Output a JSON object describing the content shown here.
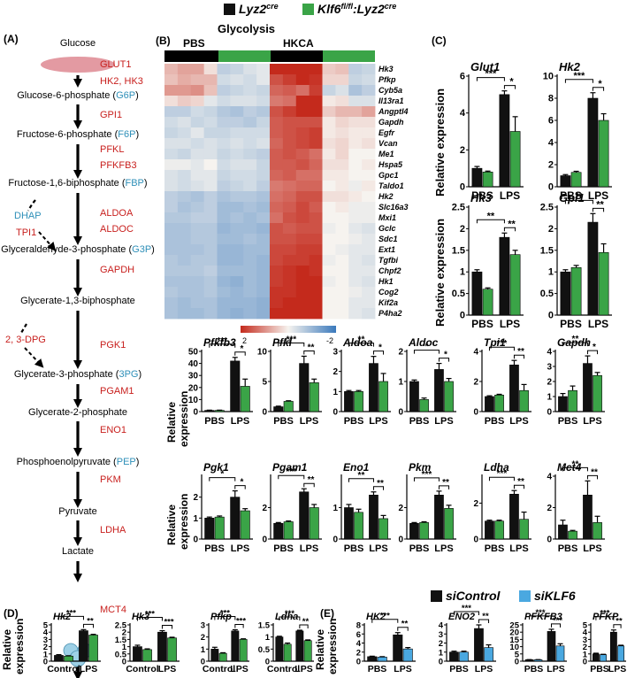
{
  "legend_top": {
    "items": [
      {
        "base": "Lyz2",
        "sup": "cre",
        "color": "#111111"
      },
      {
        "base": "Klf6",
        "sup": "fl/fl",
        "base2": ":Lyz2",
        "sup2": "cre",
        "color": "#3aa447"
      }
    ]
  },
  "legend_bottom": {
    "items": [
      {
        "label": "siControl",
        "color": "#111111"
      },
      {
        "label": "siKLF6",
        "color": "#4aa8e0"
      }
    ]
  },
  "colors": {
    "black": "#111111",
    "green": "#3aa447",
    "blue": "#4aa8e0",
    "enzyme": "#c8201e",
    "abbr": "#2e8fb8"
  },
  "panel_a": {
    "label": "(A)",
    "metabolites": [
      {
        "name": "Glucose",
        "abbr": ""
      },
      {
        "name": "Glucose-6-phosphate",
        "abbr": "G6P"
      },
      {
        "name": "Fructose-6-phosphate",
        "abbr": "F6P"
      },
      {
        "name": "Fructose-1,6-biphosphate",
        "abbr": "FBP"
      },
      {
        "name": "Glyceraldehyde-3-phosphate",
        "abbr": "G3P"
      },
      {
        "name": "Glycerate-1,3-biphosphate",
        "abbr": ""
      },
      {
        "name": "Glycerate-3-phosphate",
        "abbr": "3PG"
      },
      {
        "name": "Glycerate-2-phosphate",
        "abbr": ""
      },
      {
        "name": "Phosphoenolpyruvate",
        "abbr": "PEP"
      },
      {
        "name": "Pyruvate",
        "abbr": ""
      },
      {
        "name": "Lactate",
        "abbr": ""
      }
    ],
    "enzymes": [
      "GLUT1",
      "HK2, HK3",
      "GPI1",
      "PFKL",
      "PFKFB3",
      "ALDOA",
      "ALDOC",
      "GAPDH",
      "PGK1",
      "PGAM1",
      "ENO1",
      "PKM",
      "LDHA",
      "MCT4"
    ],
    "side": [
      {
        "label": "DHAP",
        "color": "blue"
      },
      {
        "label": "TPI1",
        "color": "red"
      },
      {
        "label": "2, 3-DPG",
        "color": "red"
      }
    ]
  },
  "panel_b": {
    "label": "(B)",
    "title": "Glycolysis",
    "groups": [
      "PBS",
      "HKCA"
    ],
    "genes": [
      "Hk3",
      "Pfkp",
      "Cyb5a",
      "Il13ra1",
      "Angptl4",
      "Gapdh",
      "Egfr",
      "Vcan",
      "Me1",
      "Hspa5",
      "Gpc1",
      "Taldo1",
      "Hk2",
      "Slc16a3",
      "Mxi1",
      "Gclc",
      "Sdc1",
      "Ext1",
      "Tgfbi",
      "Chpf2",
      "Hk1",
      "Cog2",
      "Kif2a",
      "P4ha2"
    ],
    "scale_ticks": [
      "2",
      "0",
      "-2"
    ]
  },
  "panel_c": {
    "label": "(C)"
  },
  "panel_d": {
    "label": "(D)"
  },
  "panel_e": {
    "label": "(E)"
  },
  "y_title": "Relative expression",
  "y_title_split": [
    "Relative",
    "expression"
  ],
  "sig_symbols": [
    "***",
    "**",
    "*"
  ],
  "charts": {
    "Glut1": {
      "type": "bar",
      "gene": "Glut1",
      "categories": [
        "PBS",
        "LPS"
      ],
      "series": [
        {
          "name": "Lyz2cre",
          "values": [
            1.0,
            5.0
          ]
        },
        {
          "name": "Klf6fl/fl:Lyz2cre",
          "values": [
            0.8,
            3.0
          ]
        }
      ],
      "errors": [
        [
          0.1,
          0.2
        ],
        [
          0.05,
          0.8
        ]
      ],
      "ylim": [
        0,
        6
      ],
      "yticks": [
        "0",
        "2",
        "4",
        "6"
      ],
      "sig": [
        "***",
        "*"
      ]
    },
    "Hk2_c": {
      "type": "bar",
      "gene": "Hk2",
      "categories": [
        "PBS",
        "LPS"
      ],
      "series": [
        {
          "name": "Lyz2cre",
          "values": [
            1.0,
            8.0
          ]
        },
        {
          "name": "Klf6fl/fl:Lyz2cre",
          "values": [
            1.3,
            6.0
          ]
        }
      ],
      "errors": [
        [
          0.1,
          0.5
        ],
        [
          0.1,
          0.6
        ]
      ],
      "ylim": [
        0,
        10
      ],
      "yticks": [
        "0",
        "2",
        "4",
        "6",
        "8",
        "10"
      ],
      "sig": [
        "***",
        "*"
      ]
    },
    "Hk3_c": {
      "type": "bar",
      "gene": "Hk3",
      "categories": [
        "PBS",
        "LPS"
      ],
      "series": [
        {
          "name": "Lyz2cre",
          "values": [
            1.0,
            1.8
          ]
        },
        {
          "name": "Klf6fl/fl:Lyz2cre",
          "values": [
            0.6,
            1.4
          ]
        }
      ],
      "errors": [
        [
          0.05,
          0.1
        ],
        [
          0.03,
          0.1
        ]
      ],
      "ylim": [
        0,
        2.5
      ],
      "yticks": [
        "0",
        "0.5",
        "1",
        "1.5",
        "2",
        "2.5"
      ],
      "sig": [
        "**",
        "**"
      ]
    },
    "Gpi1": {
      "type": "bar",
      "gene": "Gpi1",
      "categories": [
        "PBS",
        "LPS"
      ],
      "series": [
        {
          "name": "Lyz2cre",
          "values": [
            1.0,
            2.15
          ]
        },
        {
          "name": "Klf6fl/fl:Lyz2cre",
          "values": [
            1.1,
            1.45
          ]
        }
      ],
      "errors": [
        [
          0.05,
          0.2
        ],
        [
          0.05,
          0.2
        ]
      ],
      "ylim": [
        0,
        2.5
      ],
      "yticks": [
        "0",
        "0.5",
        "1",
        "1.5",
        "2",
        "2.5"
      ],
      "sig": [
        "**",
        "**"
      ]
    },
    "Pfkfb3": {
      "type": "bar",
      "gene": "Pfkfb3",
      "categories": [
        "PBS",
        "LPS"
      ],
      "series": [
        {
          "name": "Lyz2cre",
          "values": [
            1.0,
            42
          ]
        },
        {
          "name": "Klf6fl/fl:Lyz2cre",
          "values": [
            1.0,
            21
          ]
        }
      ],
      "errors": [
        [
          0.2,
          3
        ],
        [
          0.2,
          6
        ]
      ],
      "ylim": [
        0,
        50
      ],
      "yticks": [
        "0",
        "10",
        "20",
        "30",
        "40",
        "50"
      ],
      "sig": [
        "***",
        "*"
      ]
    },
    "Pfkl": {
      "type": "bar",
      "gene": "Pfkl",
      "categories": [
        "PBS",
        "LPS"
      ],
      "series": [
        {
          "name": "Lyz2cre",
          "values": [
            0.8,
            8.0
          ]
        },
        {
          "name": "Klf6fl/fl:Lyz2cre",
          "values": [
            1.7,
            4.8
          ]
        }
      ],
      "errors": [
        [
          0.1,
          1.2
        ],
        [
          0.1,
          0.6
        ]
      ],
      "ylim": [
        0,
        10
      ],
      "yticks": [
        "0",
        "5",
        "10"
      ],
      "sig": [
        "***",
        "**"
      ]
    },
    "Aldoa": {
      "type": "bar",
      "gene": "Aldoa",
      "categories": [
        "PBS",
        "LPS"
      ],
      "series": [
        {
          "name": "Lyz2cre",
          "values": [
            1.0,
            2.4
          ]
        },
        {
          "name": "Klf6fl/fl:Lyz2cre",
          "values": [
            1.0,
            1.5
          ]
        }
      ],
      "errors": [
        [
          0.05,
          0.35
        ],
        [
          0.05,
          0.4
        ]
      ],
      "ylim": [
        0,
        3
      ],
      "yticks": [
        "0",
        "1",
        "2",
        "3"
      ],
      "sig": [
        "**",
        "*"
      ]
    },
    "Aldoc": {
      "type": "bar",
      "gene": "Aldoc",
      "categories": [
        "PBS",
        "LPS"
      ],
      "series": [
        {
          "name": "Lyz2cre",
          "values": [
            1.0,
            1.4
          ]
        },
        {
          "name": "Klf6fl/fl:Lyz2cre",
          "values": [
            0.4,
            1.0
          ]
        }
      ],
      "errors": [
        [
          0.05,
          0.2
        ],
        [
          0.05,
          0.1
        ]
      ],
      "ylim": [
        0,
        2
      ],
      "yticks": [
        "0",
        "1",
        "2"
      ],
      "sig": [
        "*",
        "*"
      ]
    },
    "Tpi1": {
      "type": "bar",
      "gene": "Tpi1",
      "categories": [
        "PBS",
        "LPS"
      ],
      "series": [
        {
          "name": "Lyz2cre",
          "values": [
            1.0,
            3.1
          ]
        },
        {
          "name": "Klf6fl/fl:Lyz2cre",
          "values": [
            1.1,
            1.4
          ]
        }
      ],
      "errors": [
        [
          0.05,
          0.3
        ],
        [
          0.05,
          0.4
        ]
      ],
      "ylim": [
        0,
        4
      ],
      "yticks": [
        "0",
        "2",
        "4"
      ],
      "sig": [
        "***",
        "**"
      ]
    },
    "Gapdh": {
      "type": "bar",
      "gene": "Gapdh",
      "categories": [
        "PBS",
        "LPS"
      ],
      "series": [
        {
          "name": "Lyz2cre",
          "values": [
            1.0,
            3.2
          ]
        },
        {
          "name": "Klf6fl/fl:Lyz2cre",
          "values": [
            1.4,
            2.4
          ]
        }
      ],
      "errors": [
        [
          0.2,
          0.5
        ],
        [
          0.3,
          0.2
        ]
      ],
      "ylim": [
        0,
        4
      ],
      "yticks": [
        "0",
        "1",
        "2",
        "3",
        "4"
      ],
      "sig": [
        "**",
        "*"
      ]
    },
    "Pgk1": {
      "type": "bar",
      "gene": "Pgk1",
      "categories": [
        "PBS",
        "LPS"
      ],
      "series": [
        {
          "name": "Lyz2cre",
          "values": [
            1.0,
            2.0
          ]
        },
        {
          "name": "Klf6fl/fl:Lyz2cre",
          "values": [
            1.05,
            1.35
          ]
        }
      ],
      "errors": [
        [
          0.05,
          0.3
        ],
        [
          0.05,
          0.1
        ]
      ],
      "ylim": [
        0,
        3
      ],
      "yticks": [
        "0",
        "1",
        "2"
      ],
      "sig": [
        "*",
        "*"
      ]
    },
    "Pgam1": {
      "type": "bar",
      "gene": "Pgam1",
      "categories": [
        "PBS",
        "LPS"
      ],
      "series": [
        {
          "name": "Lyz2cre",
          "values": [
            1.0,
            3.0
          ]
        },
        {
          "name": "Klf6fl/fl:Lyz2cre",
          "values": [
            1.1,
            2.0
          ]
        }
      ],
      "errors": [
        [
          0.05,
          0.2
        ],
        [
          0.05,
          0.2
        ]
      ],
      "ylim": [
        0,
        4
      ],
      "yticks": [
        "0",
        "2"
      ],
      "sig": [
        "***",
        "**"
      ]
    },
    "Eno1": {
      "type": "bar",
      "gene": "Eno1",
      "categories": [
        "PBS",
        "LPS"
      ],
      "series": [
        {
          "name": "Lyz2cre",
          "values": [
            1.0,
            1.4
          ]
        },
        {
          "name": "Klf6fl/fl:Lyz2cre",
          "values": [
            0.85,
            0.65
          ]
        }
      ],
      "errors": [
        [
          0.1,
          0.1
        ],
        [
          0.1,
          0.1
        ]
      ],
      "ylim": [
        0,
        2
      ],
      "yticks": [
        "0",
        "1"
      ],
      "sig": [
        "**",
        "**"
      ]
    },
    "Pkm": {
      "type": "bar",
      "gene": "Pkm",
      "categories": [
        "PBS",
        "LPS"
      ],
      "series": [
        {
          "name": "Lyz2cre",
          "values": [
            1.0,
            2.8
          ]
        },
        {
          "name": "Klf6fl/fl:Lyz2cre",
          "values": [
            1.05,
            1.95
          ]
        }
      ],
      "errors": [
        [
          0.05,
          0.25
        ],
        [
          0.05,
          0.2
        ]
      ],
      "ylim": [
        0,
        4
      ],
      "yticks": [
        "0",
        "2"
      ],
      "sig": [
        "***",
        "**"
      ]
    },
    "Ldha": {
      "type": "bar",
      "gene": "Ldha",
      "categories": [
        "PBS",
        "LPS"
      ],
      "series": [
        {
          "name": "Lyz2cre",
          "values": [
            1.0,
            2.5
          ]
        },
        {
          "name": "Klf6fl/fl:Lyz2cre",
          "values": [
            1.0,
            1.1
          ]
        }
      ],
      "errors": [
        [
          0.05,
          0.2
        ],
        [
          0.05,
          0.4
        ]
      ],
      "ylim": [
        0,
        3.5
      ],
      "yticks": [
        "0",
        "2"
      ],
      "sig": [
        "***",
        "**"
      ]
    },
    "Mct4": {
      "type": "bar",
      "gene": "Mct4",
      "categories": [
        "PBS",
        "LPS"
      ],
      "series": [
        {
          "name": "Lyz2cre",
          "values": [
            0.9,
            2.8
          ]
        },
        {
          "name": "Klf6fl/fl:Lyz2cre",
          "values": [
            0.5,
            1.05
          ]
        }
      ],
      "errors": [
        [
          0.3,
          0.9
        ],
        [
          0.05,
          0.4
        ]
      ],
      "ylim": [
        0,
        4
      ],
      "yticks": [
        "0",
        "2",
        "4"
      ],
      "sig": [
        "**",
        "**"
      ]
    },
    "Hk2_d": {
      "type": "bar",
      "gene": "Hk2",
      "categories": [
        "Control",
        "LPS"
      ],
      "series": [
        {
          "name": "Lyz2cre",
          "values": [
            0.8,
            4.2
          ]
        },
        {
          "name": "Klf6fl/fl:Lyz2cre",
          "values": [
            0.7,
            3.6
          ]
        }
      ],
      "errors": [
        [
          0.1,
          0.15
        ],
        [
          0.05,
          0.1
        ]
      ],
      "ylim": [
        0,
        5
      ],
      "yticks": [
        "0",
        "1",
        "2",
        "3",
        "4",
        "5"
      ],
      "sig": [
        "***",
        "**"
      ]
    },
    "Hk3_d": {
      "type": "bar",
      "gene": "Hk3",
      "categories": [
        "Control",
        "LPS"
      ],
      "series": [
        {
          "name": "Lyz2cre",
          "values": [
            1.0,
            2.0
          ]
        },
        {
          "name": "Klf6fl/fl:Lyz2cre",
          "values": [
            0.8,
            1.6
          ]
        }
      ],
      "errors": [
        [
          0.1,
          0.1
        ],
        [
          0.05,
          0.05
        ]
      ],
      "ylim": [
        0,
        2.5
      ],
      "yticks": [
        "0",
        "0.5",
        "1",
        "1.5",
        "2",
        "2.5"
      ],
      "sig": [
        "***",
        "***"
      ]
    },
    "Pfkp_d": {
      "type": "bar",
      "gene": "Pfkp",
      "categories": [
        "Control",
        "LPS"
      ],
      "series": [
        {
          "name": "Lyz2cre",
          "values": [
            1.0,
            2.5
          ]
        },
        {
          "name": "Klf6fl/fl:Lyz2cre",
          "values": [
            0.65,
            1.8
          ]
        }
      ],
      "errors": [
        [
          0.15,
          0.1
        ],
        [
          0.05,
          0.05
        ]
      ],
      "ylim": [
        0,
        3
      ],
      "yticks": [
        "0",
        "1",
        "2",
        "3"
      ],
      "sig": [
        "***",
        "***"
      ]
    },
    "Ldha_d": {
      "type": "bar",
      "gene": "Ldha",
      "categories": [
        "Control",
        "LPS"
      ],
      "series": [
        {
          "name": "Lyz2cre",
          "values": [
            1.0,
            1.25
          ]
        },
        {
          "name": "Klf6fl/fl:Lyz2cre",
          "values": [
            0.7,
            0.85
          ]
        }
      ],
      "errors": [
        [
          0.03,
          0.03
        ],
        [
          0.05,
          0.03
        ]
      ],
      "ylim": [
        0,
        1.5
      ],
      "yticks": [
        "0",
        "0.5",
        "1",
        "1.5"
      ],
      "sig": [
        "***",
        "**"
      ]
    },
    "HK2_e": {
      "type": "bar",
      "gene": "HK2",
      "categories": [
        "PBS",
        "LPS"
      ],
      "series": [
        {
          "name": "siControl",
          "values": [
            1.0,
            5.8
          ]
        },
        {
          "name": "siKLF6",
          "values": [
            0.9,
            2.7
          ]
        }
      ],
      "errors": [
        [
          0.1,
          0.5
        ],
        [
          0.1,
          0.3
        ]
      ],
      "ylim": [
        0,
        8
      ],
      "yticks": [
        "0",
        "2",
        "4",
        "6",
        "8"
      ],
      "sig": [
        "***",
        "**"
      ]
    },
    "ENO2": {
      "type": "bar",
      "gene": "ENO2",
      "categories": [
        "PBS",
        "LPS"
      ],
      "series": [
        {
          "name": "siControl",
          "values": [
            1.0,
            3.6
          ]
        },
        {
          "name": "siKLF6",
          "values": [
            1.0,
            1.5
          ]
        }
      ],
      "errors": [
        [
          0.1,
          0.4
        ],
        [
          0.1,
          0.3
        ]
      ],
      "ylim": [
        0,
        4
      ],
      "yticks": [
        "0",
        "1",
        "2",
        "3",
        "4"
      ],
      "sig": [
        "***",
        "**"
      ]
    },
    "PFKFB3": {
      "type": "bar",
      "gene": "PFKFB3",
      "categories": [
        "PBS",
        "LPS"
      ],
      "series": [
        {
          "name": "siControl",
          "values": [
            1.0,
            20.5
          ]
        },
        {
          "name": "siKLF6",
          "values": [
            1.0,
            10.5
          ]
        }
      ],
      "errors": [
        [
          0.1,
          1.5
        ],
        [
          0.1,
          1.5
        ]
      ],
      "ylim": [
        0,
        25
      ],
      "yticks": [
        "0",
        "5",
        "10",
        "15",
        "20",
        "25"
      ],
      "sig": [
        "***",
        "***"
      ]
    },
    "PFKP": {
      "type": "bar",
      "gene": "PFKP",
      "categories": [
        "PBS",
        "LPS"
      ],
      "series": [
        {
          "name": "siControl",
          "values": [
            1.0,
            4.0
          ]
        },
        {
          "name": "siKLF6",
          "values": [
            0.9,
            2.1
          ]
        }
      ],
      "errors": [
        [
          0.1,
          0.3
        ],
        [
          0.05,
          0.1
        ]
      ],
      "ylim": [
        0,
        5
      ],
      "yticks": [
        "0",
        "1",
        "2",
        "3",
        "4",
        "5"
      ],
      "sig": [
        "***",
        "**"
      ]
    }
  }
}
